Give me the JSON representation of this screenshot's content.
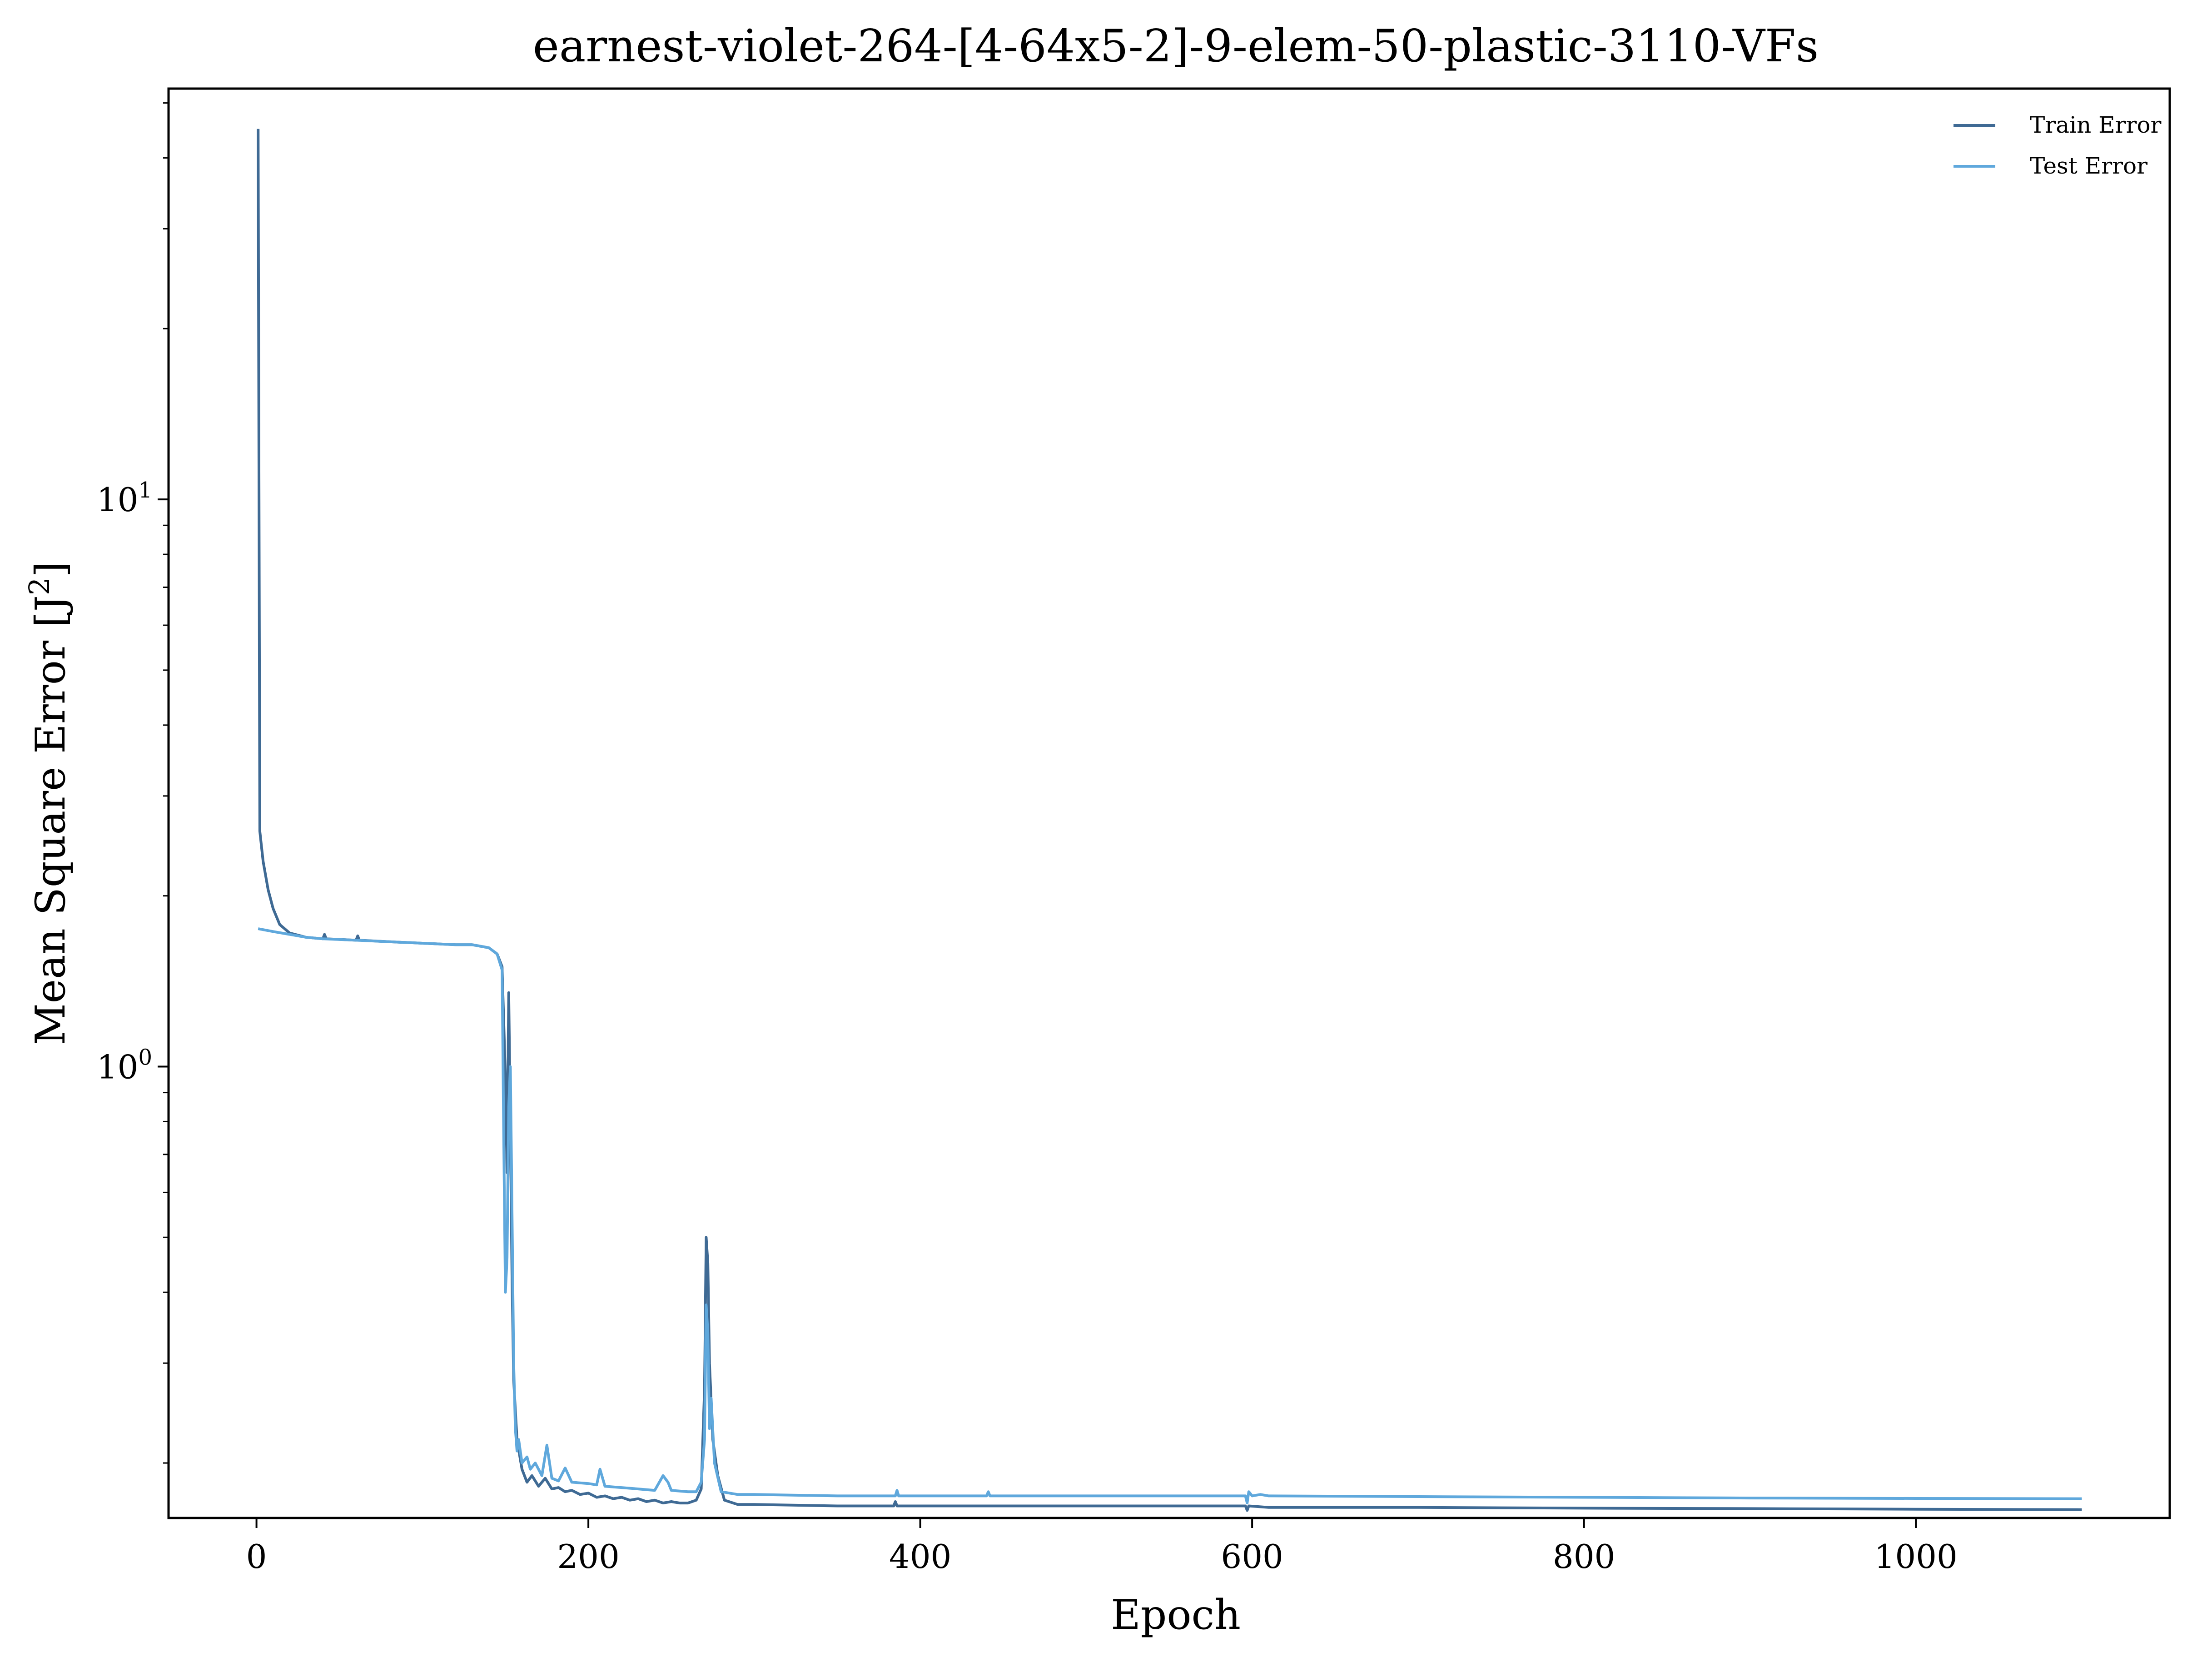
{
  "chart_data": {
    "type": "line",
    "title": "earnest-violet-264-[4-64x5-2]-9-elem-50-plastic-3110-VFs",
    "xlabel": "Epoch",
    "ylabel": "Mean Square Error [J",
    "ylabel_sup": "2",
    "ylabel_suffix": "]",
    "xlim": [
      -53,
      1153
    ],
    "ylim": [
      0.16,
      53
    ],
    "yscale": "log",
    "grid": false,
    "legend_position": "top-right",
    "x_ticks": [
      0,
      200,
      400,
      600,
      800,
      1000
    ],
    "x_tick_labels": [
      "0",
      "200",
      "400",
      "600",
      "800",
      "1000"
    ],
    "y_ticks": [
      {
        "value": 1,
        "base": "10",
        "exp": "0"
      },
      {
        "value": 10,
        "base": "10",
        "exp": "1"
      }
    ],
    "series": [
      {
        "name": "Train Error",
        "color": "#3f6a94",
        "points": [
          [
            1,
            45
          ],
          [
            2,
            2.6
          ],
          [
            4,
            2.3
          ],
          [
            7,
            2.05
          ],
          [
            10,
            1.9
          ],
          [
            14,
            1.78
          ],
          [
            20,
            1.72
          ],
          [
            30,
            1.69
          ],
          [
            40,
            1.68
          ],
          [
            41,
            1.71
          ],
          [
            42,
            1.68
          ],
          [
            60,
            1.67
          ],
          [
            61,
            1.7
          ],
          [
            62,
            1.67
          ],
          [
            80,
            1.66
          ],
          [
            100,
            1.65
          ],
          [
            120,
            1.64
          ],
          [
            130,
            1.64
          ],
          [
            140,
            1.62
          ],
          [
            145,
            1.58
          ],
          [
            148,
            1.5
          ],
          [
            150,
            0.95
          ],
          [
            151,
            0.65
          ],
          [
            152,
            1.35
          ],
          [
            153,
            0.78
          ],
          [
            154,
            0.42
          ],
          [
            155,
            0.28
          ],
          [
            157,
            0.22
          ],
          [
            160,
            0.195
          ],
          [
            163,
            0.185
          ],
          [
            166,
            0.19
          ],
          [
            170,
            0.182
          ],
          [
            174,
            0.188
          ],
          [
            178,
            0.18
          ],
          [
            182,
            0.181
          ],
          [
            186,
            0.178
          ],
          [
            190,
            0.179
          ],
          [
            195,
            0.176
          ],
          [
            200,
            0.177
          ],
          [
            205,
            0.174
          ],
          [
            210,
            0.175
          ],
          [
            215,
            0.173
          ],
          [
            220,
            0.174
          ],
          [
            225,
            0.172
          ],
          [
            230,
            0.173
          ],
          [
            235,
            0.171
          ],
          [
            240,
            0.172
          ],
          [
            245,
            0.17
          ],
          [
            250,
            0.171
          ],
          [
            255,
            0.17
          ],
          [
            260,
            0.17
          ],
          [
            265,
            0.172
          ],
          [
            268,
            0.18
          ],
          [
            270,
            0.27
          ],
          [
            271,
            0.5
          ],
          [
            272,
            0.45
          ],
          [
            273,
            0.3
          ],
          [
            275,
            0.22
          ],
          [
            278,
            0.19
          ],
          [
            282,
            0.172
          ],
          [
            290,
            0.169
          ],
          [
            300,
            0.169
          ],
          [
            350,
            0.168
          ],
          [
            384,
            0.168
          ],
          [
            385,
            0.171
          ],
          [
            386,
            0.168
          ],
          [
            400,
            0.168
          ],
          [
            500,
            0.168
          ],
          [
            590,
            0.168
          ],
          [
            596,
            0.168
          ],
          [
            597,
            0.165
          ],
          [
            598,
            0.168
          ],
          [
            610,
            0.167
          ],
          [
            700,
            0.167
          ],
          [
            800,
            0.1665
          ],
          [
            900,
            0.1662
          ],
          [
            1000,
            0.1658
          ],
          [
            1100,
            0.1655
          ]
        ]
      },
      {
        "name": "Test Error",
        "color": "#5fa8dc",
        "points": [
          [
            1,
            1.75
          ],
          [
            10,
            1.73
          ],
          [
            20,
            1.71
          ],
          [
            30,
            1.69
          ],
          [
            40,
            1.68
          ],
          [
            60,
            1.67
          ],
          [
            80,
            1.66
          ],
          [
            100,
            1.65
          ],
          [
            120,
            1.64
          ],
          [
            130,
            1.64
          ],
          [
            140,
            1.62
          ],
          [
            145,
            1.58
          ],
          [
            148,
            1.48
          ],
          [
            149,
            0.75
          ],
          [
            150,
            0.4
          ],
          [
            151,
            0.46
          ],
          [
            152,
            0.85
          ],
          [
            153,
            1.0
          ],
          [
            154,
            0.55
          ],
          [
            155,
            0.3
          ],
          [
            156,
            0.23
          ],
          [
            157,
            0.21
          ],
          [
            158,
            0.22
          ],
          [
            160,
            0.2
          ],
          [
            163,
            0.205
          ],
          [
            165,
            0.195
          ],
          [
            168,
            0.2
          ],
          [
            172,
            0.19
          ],
          [
            175,
            0.215
          ],
          [
            178,
            0.188
          ],
          [
            182,
            0.186
          ],
          [
            186,
            0.196
          ],
          [
            190,
            0.185
          ],
          [
            200,
            0.184
          ],
          [
            205,
            0.183
          ],
          [
            207,
            0.195
          ],
          [
            210,
            0.182
          ],
          [
            220,
            0.181
          ],
          [
            230,
            0.18
          ],
          [
            240,
            0.179
          ],
          [
            245,
            0.19
          ],
          [
            248,
            0.185
          ],
          [
            250,
            0.179
          ],
          [
            260,
            0.178
          ],
          [
            265,
            0.178
          ],
          [
            268,
            0.185
          ],
          [
            270,
            0.22
          ],
          [
            271,
            0.38
          ],
          [
            272,
            0.34
          ],
          [
            273,
            0.23
          ],
          [
            274,
            0.26
          ],
          [
            276,
            0.2
          ],
          [
            280,
            0.178
          ],
          [
            290,
            0.176
          ],
          [
            300,
            0.176
          ],
          [
            350,
            0.175
          ],
          [
            385,
            0.175
          ],
          [
            386,
            0.179
          ],
          [
            387,
            0.175
          ],
          [
            440,
            0.175
          ],
          [
            441,
            0.178
          ],
          [
            442,
            0.175
          ],
          [
            500,
            0.175
          ],
          [
            590,
            0.175
          ],
          [
            596,
            0.175
          ],
          [
            597,
            0.17
          ],
          [
            598,
            0.178
          ],
          [
            600,
            0.175
          ],
          [
            605,
            0.176
          ],
          [
            610,
            0.175
          ],
          [
            700,
            0.1745
          ],
          [
            800,
            0.174
          ],
          [
            900,
            0.1735
          ],
          [
            1000,
            0.1732
          ],
          [
            1100,
            0.173
          ]
        ]
      }
    ]
  }
}
